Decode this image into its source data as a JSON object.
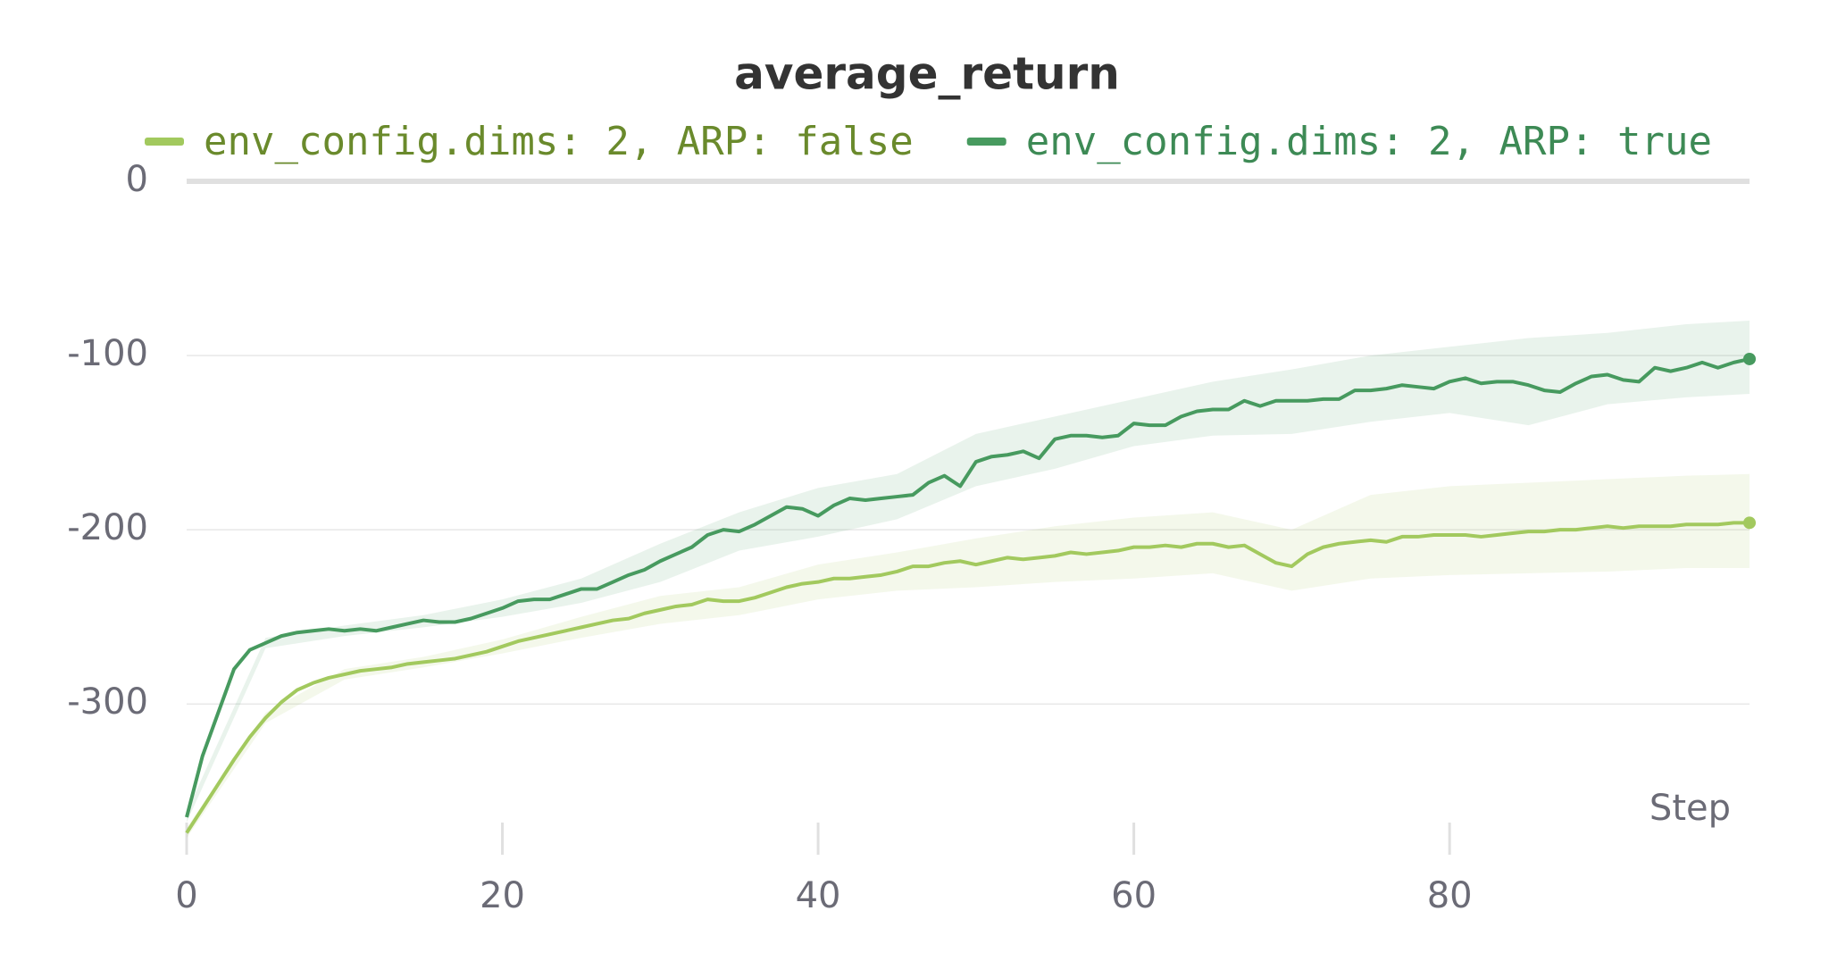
{
  "chart_data": {
    "type": "line",
    "title": "average_return",
    "xlabel": "Step",
    "xlim": [
      0,
      99
    ],
    "ylim": [
      -385,
      0
    ],
    "xticks": [
      0,
      20,
      40,
      60,
      80
    ],
    "yticks": [
      0,
      -100,
      -200,
      -300
    ],
    "grid": true,
    "x": [
      0,
      1,
      2,
      3,
      4,
      5,
      6,
      7,
      8,
      9,
      10,
      11,
      12,
      13,
      14,
      15,
      16,
      17,
      18,
      19,
      20,
      21,
      22,
      23,
      24,
      25,
      26,
      27,
      28,
      29,
      30,
      31,
      32,
      33,
      34,
      35,
      36,
      37,
      38,
      39,
      40,
      41,
      42,
      43,
      44,
      45,
      46,
      47,
      48,
      49,
      50,
      51,
      52,
      53,
      54,
      55,
      56,
      57,
      58,
      59,
      60,
      61,
      62,
      63,
      64,
      65,
      66,
      67,
      68,
      69,
      70,
      71,
      72,
      73,
      74,
      75,
      76,
      77,
      78,
      79,
      80,
      81,
      82,
      83,
      84,
      85,
      86,
      87,
      88,
      89,
      90,
      91,
      92,
      93,
      94,
      95,
      96,
      97,
      98,
      99
    ],
    "band_x": [
      0,
      5,
      10,
      15,
      20,
      25,
      30,
      35,
      40,
      45,
      50,
      55,
      60,
      65,
      70,
      75,
      80,
      85,
      90,
      95,
      99
    ],
    "series": [
      {
        "name": "env_config.dims: 2, ARP: false",
        "color": "#a2c95e",
        "values": [
          -374,
          -360,
          -346,
          -332,
          -319,
          -308,
          -299,
          -292,
          -288,
          -285,
          -283,
          -281,
          -280,
          -279,
          -277,
          -276,
          -275,
          -274,
          -272,
          -270,
          -267,
          -264,
          -262,
          -260,
          -258,
          -256,
          -254,
          -252,
          -251,
          -248,
          -246,
          -244,
          -243,
          -240,
          -241,
          -241,
          -239,
          -236,
          -233,
          -231,
          -230,
          -228,
          -228,
          -227,
          -226,
          -224,
          -221,
          -221,
          -219,
          -218,
          -220,
          -218,
          -216,
          -217,
          -216,
          -215,
          -213,
          -214,
          -213,
          -212,
          -210,
          -210,
          -209,
          -210,
          -208,
          -208,
          -210,
          -209,
          -214,
          -219,
          -221,
          -214,
          -210,
          -208,
          -207,
          -206,
          -207,
          -204,
          -204,
          -203,
          -203,
          -203,
          -204,
          -203,
          -202,
          -201,
          -201,
          -200,
          -200,
          -199,
          -198,
          -199,
          -198,
          -198,
          -198,
          -197,
          -197,
          -197,
          -196,
          -196
        ],
        "band_lower": [
          -377,
          -311,
          -286,
          -279,
          -271,
          -262,
          -254,
          -249,
          -240,
          -235,
          -233,
          -230,
          -228,
          -225,
          -235,
          -228,
          -226,
          -225,
          -224,
          -222,
          -222
        ],
        "band_upper": [
          -371,
          -305,
          -280,
          -273,
          -263,
          -250,
          -238,
          -233,
          -220,
          -213,
          -205,
          -198,
          -193,
          -190,
          -200,
          -180,
          -175,
          -173,
          -171,
          -169,
          -168
        ]
      },
      {
        "name": "env_config.dims: 2, ARP: true",
        "color": "#479a5f",
        "values": [
          -365,
          -330,
          -305,
          -280,
          -269,
          -265,
          -261,
          -259,
          -258,
          -257,
          -258,
          -257,
          -258,
          -256,
          -254,
          -252,
          -253,
          -253,
          -251,
          -248,
          -245,
          -241,
          -240,
          -240,
          -237,
          -234,
          -234,
          -230,
          -226,
          -223,
          -218,
          -214,
          -210,
          -203,
          -200,
          -201,
          -197,
          -192,
          -187,
          -188,
          -192,
          -186,
          -182,
          -183,
          -182,
          -181,
          -180,
          -173,
          -169,
          -175,
          -161,
          -158,
          -157,
          -155,
          -159,
          -148,
          -146,
          -146,
          -147,
          -146,
          -139,
          -140,
          -140,
          -135,
          -132,
          -131,
          -131,
          -126,
          -129,
          -126,
          -126,
          -126,
          -125,
          -125,
          -120,
          -120,
          -119,
          -117,
          -118,
          -119,
          -115,
          -113,
          -116,
          -115,
          -115,
          -117,
          -120,
          -121,
          -116,
          -112,
          -111,
          -114,
          -115,
          -107,
          -109,
          -107,
          -104,
          -107,
          -104,
          -102
        ],
        "band_lower": [
          -368,
          -268,
          -261,
          -256,
          -250,
          -242,
          -230,
          -212,
          -204,
          -194,
          -175,
          -165,
          -152,
          -146,
          -145,
          -138,
          -133,
          -140,
          -128,
          -124,
          -122
        ],
        "band_upper": [
          -362,
          -262,
          -255,
          -249,
          -240,
          -228,
          -208,
          -190,
          -176,
          -168,
          -145,
          -135,
          -125,
          -115,
          -108,
          -100,
          -95,
          -90,
          -87,
          -82,
          -80
        ]
      }
    ]
  }
}
